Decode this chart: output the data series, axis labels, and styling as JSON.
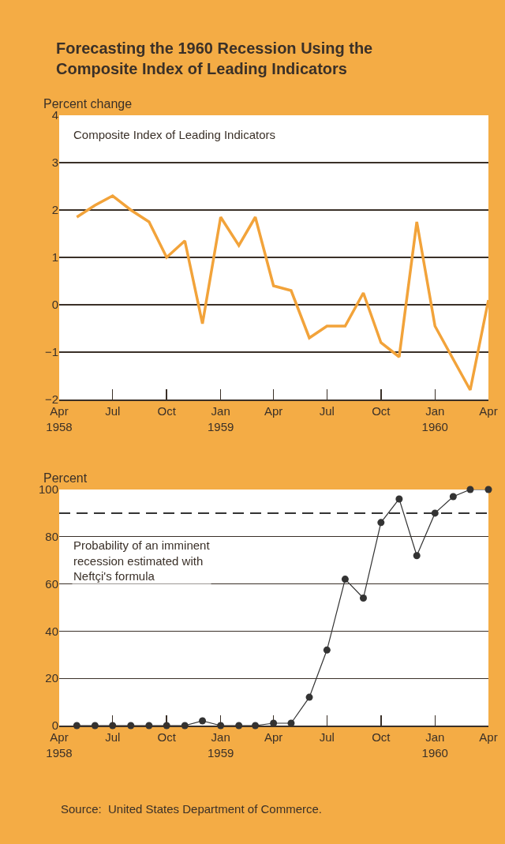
{
  "chart_data": [
    {
      "type": "line",
      "title": "Forecasting the 1960 Recession Using the Composite Index of Leading Indicators",
      "ylabel": "Percent change",
      "x": [
        "1958-05",
        "1958-06",
        "1958-07",
        "1958-08",
        "1958-09",
        "1958-10",
        "1958-11",
        "1958-12",
        "1959-01",
        "1959-02",
        "1959-03",
        "1959-04",
        "1959-05",
        "1959-06",
        "1959-07",
        "1959-08",
        "1959-09",
        "1959-10",
        "1959-11",
        "1959-12",
        "1960-01",
        "1960-02",
        "1960-03",
        "1960-04"
      ],
      "series": [
        {
          "name": "Composite Index of Leading Indicators",
          "color": "#f2a33a",
          "values": [
            1.85,
            2.1,
            2.3,
            2.0,
            1.75,
            1.0,
            1.35,
            -0.4,
            1.85,
            1.25,
            1.85,
            0.4,
            0.3,
            -0.7,
            -0.45,
            -0.45,
            0.25,
            -0.8,
            -1.1,
            1.75,
            -0.45,
            -1.15,
            -1.8,
            0.1
          ]
        }
      ],
      "xlim": [
        "1958-04",
        "1960-04"
      ],
      "xticks": [
        {
          "value": "1958-04",
          "label": "Apr\n1958"
        },
        {
          "value": "1958-07",
          "label": "Jul"
        },
        {
          "value": "1958-10",
          "label": "Oct"
        },
        {
          "value": "1959-01",
          "label": "Jan\n1959"
        },
        {
          "value": "1959-04",
          "label": "Apr"
        },
        {
          "value": "1959-07",
          "label": "Jul"
        },
        {
          "value": "1959-10",
          "label": "Oct"
        },
        {
          "value": "1960-01",
          "label": "Jan\n1960"
        },
        {
          "value": "1960-04",
          "label": "Apr"
        }
      ],
      "ylim": [
        -2,
        4
      ],
      "yticks": [
        {
          "value": -2,
          "label": "−2"
        },
        {
          "value": -1,
          "label": "−1"
        },
        0,
        1,
        2,
        3,
        4
      ],
      "grid": "y",
      "marker": "none",
      "line_style": "solid"
    },
    {
      "type": "line",
      "ylabel": "Percent",
      "x": [
        "1958-05",
        "1958-06",
        "1958-07",
        "1958-08",
        "1958-09",
        "1958-10",
        "1958-11",
        "1958-12",
        "1959-01",
        "1959-02",
        "1959-03",
        "1959-04",
        "1959-05",
        "1959-06",
        "1959-07",
        "1959-08",
        "1959-09",
        "1959-10",
        "1959-11",
        "1959-12",
        "1960-01",
        "1960-02",
        "1960-03",
        "1960-04"
      ],
      "series": [
        {
          "name": "Probability of an imminent recession estimated with Neftçi's formula",
          "color": "#333333",
          "values": [
            0,
            0,
            0,
            0,
            0,
            0,
            0,
            2,
            0,
            0,
            0,
            1,
            1,
            12,
            32,
            62,
            54,
            86,
            96,
            72,
            90,
            97,
            100,
            100
          ]
        }
      ],
      "xlim": [
        "1958-04",
        "1960-04"
      ],
      "xticks": [
        {
          "value": "1958-04",
          "label": "Apr\n1958"
        },
        {
          "value": "1958-07",
          "label": "Jul"
        },
        {
          "value": "1958-10",
          "label": "Oct"
        },
        {
          "value": "1959-01",
          "label": "Jan\n1959"
        },
        {
          "value": "1959-04",
          "label": "Apr"
        },
        {
          "value": "1959-07",
          "label": "Jul"
        },
        {
          "value": "1959-10",
          "label": "Oct"
        },
        {
          "value": "1960-01",
          "label": "Jan\n1960"
        },
        {
          "value": "1960-04",
          "label": "Apr"
        }
      ],
      "ylim": [
        0,
        100
      ],
      "yticks": [
        0,
        20,
        40,
        60,
        80,
        100
      ],
      "ref_lines": [
        {
          "axis": "y",
          "value": 90,
          "line_style": "dashed",
          "color": "#333333"
        }
      ],
      "annotations": [
        "Source:  United States Department of Commerce."
      ],
      "grid": "y",
      "marker": "circle",
      "line_style": "solid"
    }
  ]
}
